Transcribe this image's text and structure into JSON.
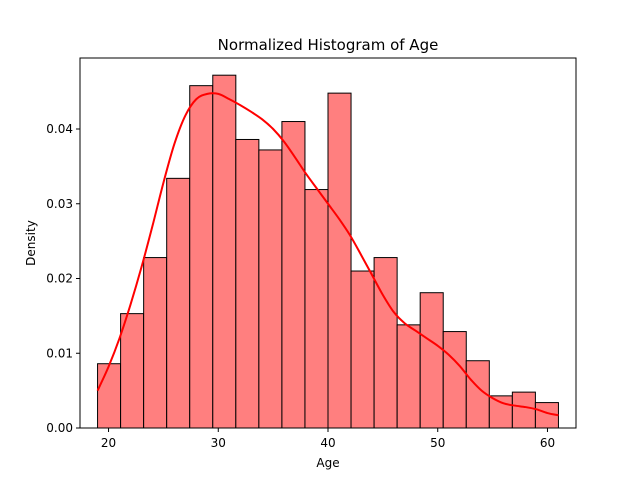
{
  "chart_data": {
    "type": "bar",
    "title": "Normalized Histogram of Age",
    "xlabel": "Age",
    "ylabel": "Density",
    "xlim": [
      17.4,
      62.6
    ],
    "ylim": [
      0,
      0.0495
    ],
    "xticks": [
      20,
      30,
      40,
      50,
      60
    ],
    "yticks": [
      0.0,
      0.01,
      0.02,
      0.03,
      0.04
    ],
    "ytick_labels": [
      "0.00",
      "0.01",
      "0.02",
      "0.03",
      "0.04"
    ],
    "bin_edges": [
      19.0,
      21.1,
      23.2,
      25.3,
      27.4,
      29.5,
      31.6,
      33.7,
      35.8,
      37.9,
      40.0,
      42.1,
      44.2,
      46.3,
      48.4,
      50.5,
      52.6,
      54.7,
      56.8,
      58.9,
      61.0
    ],
    "values": [
      0.0086,
      0.0153,
      0.0228,
      0.0334,
      0.0458,
      0.0472,
      0.0386,
      0.0372,
      0.041,
      0.0319,
      0.0448,
      0.021,
      0.0228,
      0.0138,
      0.0181,
      0.0129,
      0.009,
      0.0043,
      0.0048,
      0.0034
    ],
    "kde": {
      "x": [
        19,
        20,
        21,
        22,
        23,
        24,
        25,
        26,
        27,
        28,
        29,
        30,
        31,
        32,
        33,
        34,
        35,
        36,
        37,
        38,
        39,
        40,
        41,
        42,
        43,
        44,
        45,
        46,
        47,
        48,
        49,
        50,
        51,
        52,
        53,
        54,
        55,
        56,
        57,
        58,
        59,
        60,
        61
      ],
      "y": [
        0.005,
        0.0082,
        0.012,
        0.0165,
        0.0215,
        0.027,
        0.0328,
        0.038,
        0.0418,
        0.044,
        0.0447,
        0.0447,
        0.044,
        0.0432,
        0.0423,
        0.0413,
        0.04,
        0.0383,
        0.0362,
        0.034,
        0.032,
        0.03,
        0.028,
        0.0258,
        0.0232,
        0.0205,
        0.0178,
        0.0155,
        0.014,
        0.013,
        0.012,
        0.011,
        0.0098,
        0.0083,
        0.0065,
        0.005,
        0.004,
        0.0033,
        0.003,
        0.0028,
        0.0025,
        0.002,
        0.0017
      ]
    },
    "colors": {
      "bar_fill": "#ff7f7f",
      "bar_edge": "#000000",
      "kde_line": "#ff0000"
    },
    "grid": false,
    "legend": "none"
  }
}
